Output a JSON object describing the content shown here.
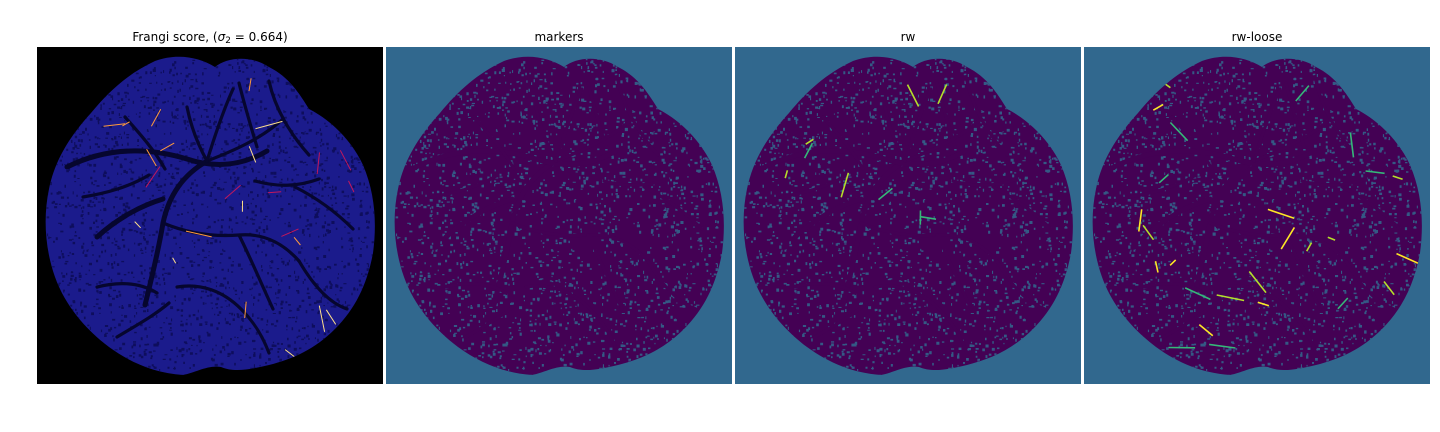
{
  "panels": [
    {
      "title_prefix": "Frangi score, (",
      "title_symbol": "σ",
      "title_subscript": "2",
      "title_suffix": " = 0.664)",
      "background_color": "#000000",
      "blob_color": "#1b1b8c",
      "texture_color": "#0c0c55",
      "vessel_color": "#06062e",
      "highlight_colors": [
        "#ff9a3c",
        "#ffe08a",
        "#c2185b"
      ]
    },
    {
      "title": "markers",
      "background_color": "#31688e",
      "blob_color": "#440154",
      "texture_color": "#31688e",
      "vessel_color": "#440154",
      "highlight_colors": [
        "#31688e"
      ]
    },
    {
      "title": "rw",
      "background_color": "#31688e",
      "blob_color": "#440154",
      "texture_color": "#31688e",
      "vessel_color": "#440154",
      "highlight_colors": [
        "#b5de2b",
        "#35b779"
      ]
    },
    {
      "title": "rw-loose",
      "background_color": "#31688e",
      "blob_color": "#440154",
      "texture_color": "#31688e",
      "vessel_color": "#440154",
      "highlight_colors": [
        "#fde725",
        "#b5de2b",
        "#35b779"
      ]
    }
  ]
}
